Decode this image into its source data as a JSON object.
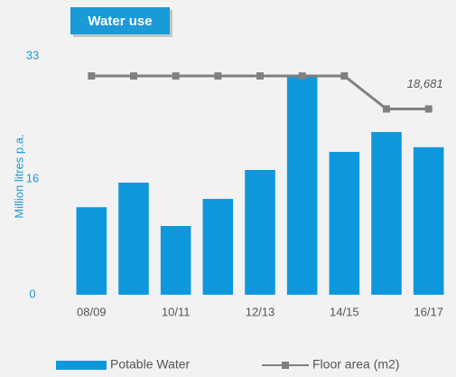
{
  "chart_data": {
    "type": "bar",
    "title": "Water use",
    "y_axis_label": "Million litres p.a.",
    "categories": [
      "08/09",
      null,
      "10/11",
      null,
      "12/13",
      null,
      "14/15",
      null,
      "16/17"
    ],
    "series": [
      {
        "name": "Potable Water",
        "type": "bar",
        "color": "#0e98dc",
        "values": [
          12.1,
          15.5,
          9.5,
          13.25,
          17.25,
          30.25,
          19.75,
          22.5,
          20.4
        ]
      },
      {
        "name": "Floor area (m2)",
        "type": "line",
        "axis": "y2",
        "color": "#808080",
        "values": [
          22000,
          22000,
          22000,
          22000,
          22000,
          22000,
          22000,
          18681,
          18681
        ],
        "value_labels": [
          null,
          null,
          null,
          null,
          null,
          null,
          null,
          null,
          "18,681"
        ]
      }
    ],
    "ylim": [
      0,
      33
    ],
    "yticks": [
      0,
      16,
      33
    ],
    "y2lim": [
      0,
      24000
    ],
    "grid": false,
    "legend": "bottom"
  }
}
